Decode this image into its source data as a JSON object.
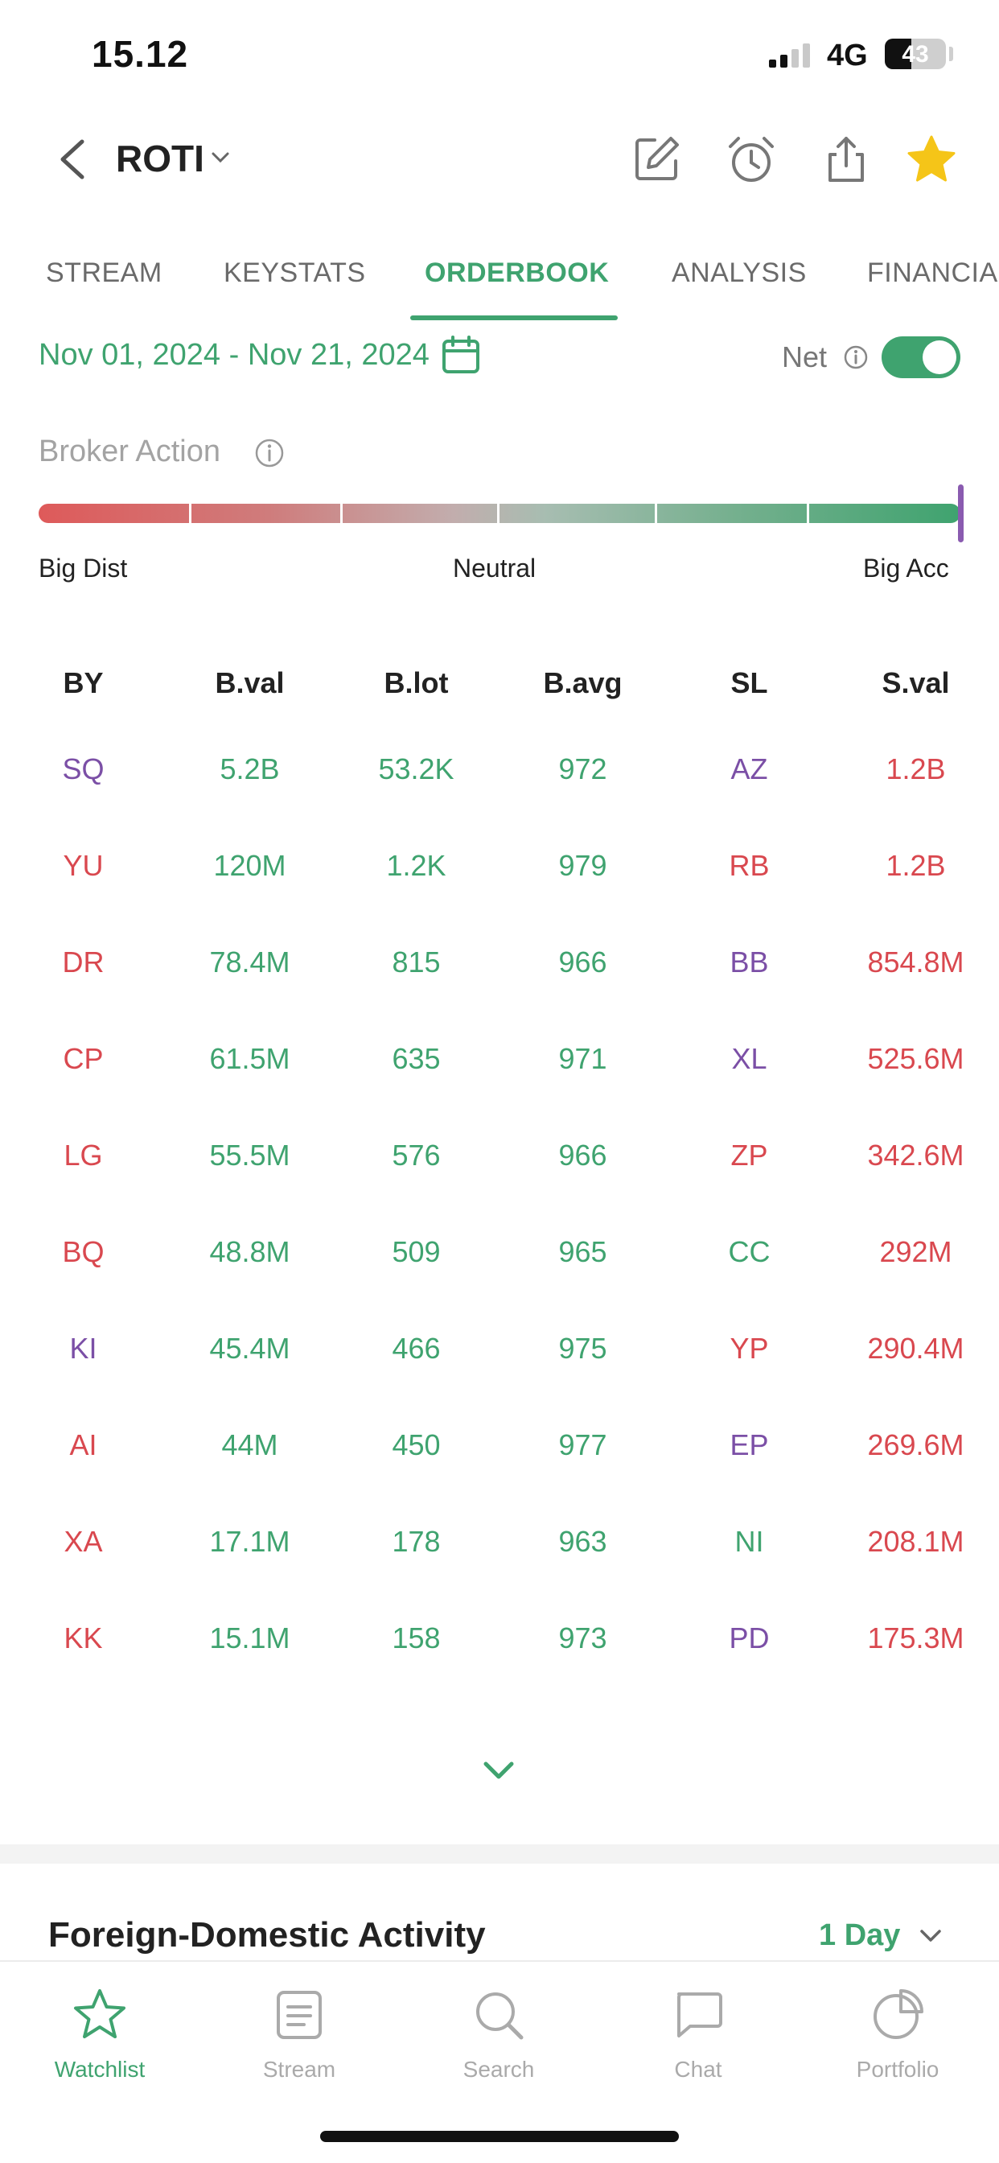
{
  "status_bar": {
    "time": "15.12",
    "network": "4G",
    "battery_level": "43",
    "battery_fraction": 0.43
  },
  "header": {
    "ticker": "ROTI",
    "icons": [
      "back-icon",
      "chevron-down-icon",
      "edit-icon",
      "alarm-icon",
      "share-icon",
      "star-icon"
    ],
    "star_color": "#f5c518"
  },
  "tabs": [
    {
      "label": "STREAM",
      "active": false
    },
    {
      "label": "KEYSTATS",
      "active": false
    },
    {
      "label": "ORDERBOOK",
      "active": true
    },
    {
      "label": "ANALYSIS",
      "active": false
    },
    {
      "label": "FINANCIALS",
      "active": false
    }
  ],
  "filters": {
    "date_range": "Nov 01, 2024 - Nov 21, 2024",
    "net_label": "Net",
    "net_enabled": true
  },
  "broker_action": {
    "title": "Broker Action",
    "labels": {
      "left": "Big Dist",
      "center": "Neutral",
      "right": "Big Acc"
    },
    "level": 1.0
  },
  "orderbook": {
    "columns": [
      "BY",
      "B.val",
      "B.lot",
      "B.avg",
      "SL",
      "S.val"
    ],
    "rows": [
      {
        "by": "SQ",
        "bval": "5.2B",
        "blot": "53.2K",
        "bavg": "972",
        "sl": "AZ",
        "sval": "1.2B"
      },
      {
        "by": "YU",
        "bval": "120M",
        "blot": "1.2K",
        "bavg": "979",
        "sl": "RB",
        "sval": "1.2B"
      },
      {
        "by": "DR",
        "bval": "78.4M",
        "blot": "815",
        "bavg": "966",
        "sl": "BB",
        "sval": "854.8M"
      },
      {
        "by": "CP",
        "bval": "61.5M",
        "blot": "635",
        "bavg": "971",
        "sl": "XL",
        "sval": "525.6M"
      },
      {
        "by": "LG",
        "bval": "55.5M",
        "blot": "576",
        "bavg": "966",
        "sl": "ZP",
        "sval": "342.6M"
      },
      {
        "by": "BQ",
        "bval": "48.8M",
        "blot": "509",
        "bavg": "965",
        "sl": "CC",
        "sval": "292M"
      },
      {
        "by": "KI",
        "bval": "45.4M",
        "blot": "466",
        "bavg": "975",
        "sl": "YP",
        "sval": "290.4M"
      },
      {
        "by": "AI",
        "bval": "44M",
        "blot": "450",
        "bavg": "977",
        "sl": "EP",
        "sval": "269.6M"
      },
      {
        "by": "XA",
        "bval": "17.1M",
        "blot": "178",
        "bavg": "963",
        "sl": "NI",
        "sval": "208.1M"
      },
      {
        "by": "KK",
        "bval": "15.1M",
        "blot": "158",
        "bavg": "973",
        "sl": "PD",
        "sval": "175.3M"
      }
    ]
  },
  "foreign_domestic": {
    "title": "Foreign-Domestic Activity",
    "period": "1 Day"
  },
  "bottom_nav": [
    {
      "label": "Watchlist",
      "icon": "star-outline-icon",
      "active": true
    },
    {
      "label": "Stream",
      "icon": "stream-icon",
      "active": false
    },
    {
      "label": "Search",
      "icon": "search-icon",
      "active": false
    },
    {
      "label": "Chat",
      "icon": "chat-icon",
      "active": false
    },
    {
      "label": "Portfolio",
      "icon": "pie-chart-icon",
      "active": false
    }
  ],
  "colors": {
    "accent_green": "#3fa36f",
    "sell_red": "#d9484f",
    "broker_purple": "#7b4fa6",
    "marker_purple": "#8a5bb0"
  }
}
